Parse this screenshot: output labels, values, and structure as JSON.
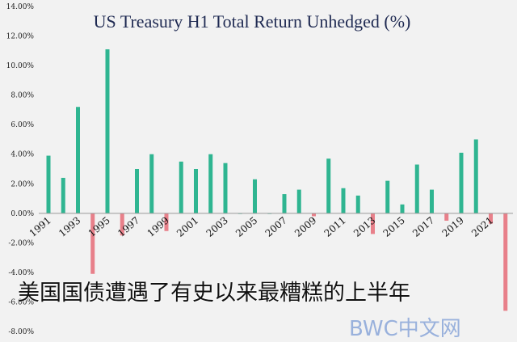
{
  "colors": {
    "positive": "#2fb591",
    "negative": "#e8808a",
    "axis": "#9a9a9a"
  },
  "caption": "美国国债遭遇了有史以来最糟糕的上半年",
  "watermark": "BWC中文网",
  "chart_data": {
    "type": "bar",
    "title": "US Treasury H1 Total Return Unhedged (%)",
    "xlabel": "",
    "ylabel": "",
    "ylim": [
      -8,
      14
    ],
    "yticks": [
      {
        "value": 14,
        "label": "14.00%"
      },
      {
        "value": 12,
        "label": "12.00%"
      },
      {
        "value": 10,
        "label": "10.00%"
      },
      {
        "value": 8,
        "label": "8.00%"
      },
      {
        "value": 6,
        "label": "6.00%"
      },
      {
        "value": 4,
        "label": "4.00%"
      },
      {
        "value": 2,
        "label": "2.00%"
      },
      {
        "value": 0,
        "label": "0.00%"
      },
      {
        "value": -2,
        "label": "-2.00%"
      },
      {
        "value": -4,
        "label": "-4.00%"
      },
      {
        "value": -6,
        "label": "-6.00%"
      },
      {
        "value": -8,
        "label": "-8.00%"
      }
    ],
    "categories": [
      "1991",
      "1992",
      "1993",
      "1994",
      "1995",
      "1996",
      "1997",
      "1998",
      "1999",
      "2000",
      "2001",
      "2002",
      "2003",
      "2004",
      "2005",
      "2006",
      "2007",
      "2008",
      "2009",
      "2010",
      "2011",
      "2012",
      "2013",
      "2014",
      "2015",
      "2016",
      "2017",
      "2018",
      "2019",
      "2020",
      "2021",
      "2022"
    ],
    "values": [
      3.9,
      2.4,
      7.2,
      -4.1,
      11.1,
      -1.5,
      3.0,
      4.0,
      -1.2,
      3.5,
      3.0,
      4.0,
      3.4,
      0.0,
      2.3,
      0.0,
      1.3,
      1.6,
      -0.2,
      3.7,
      1.7,
      1.2,
      -1.4,
      2.2,
      0.6,
      3.3,
      1.6,
      -0.5,
      4.1,
      5.0,
      -0.7,
      -6.6
    ],
    "xtick_labels": [
      "1991",
      "1993",
      "1995",
      "1997",
      "1999",
      "2001",
      "2003",
      "2005",
      "2007",
      "2009",
      "2011",
      "2013",
      "2015",
      "2017",
      "2019",
      "2021"
    ],
    "grid": false,
    "legend": "none"
  }
}
